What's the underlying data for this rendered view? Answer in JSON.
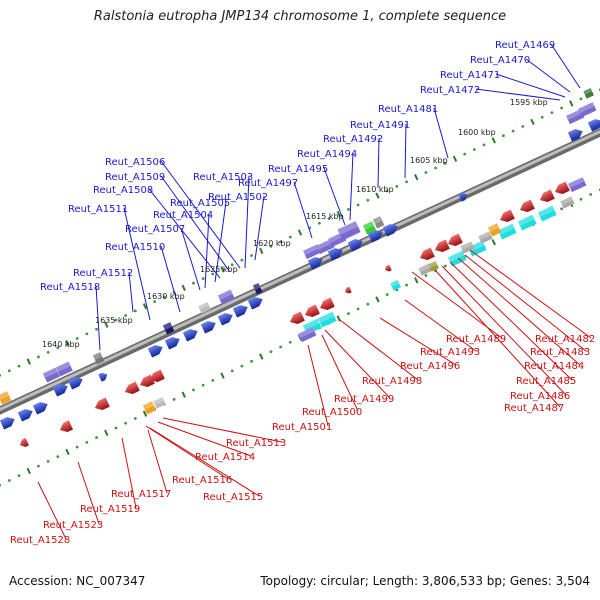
{
  "title": "Ralstonia eutropha JMP134 chromosome 1, complete sequence",
  "footer": {
    "accession": "Accession: NC_007347",
    "summary": "Topology: circular; Length: 3,806,533 bp; Genes: 3,504"
  },
  "scale_labels": [
    "1595 kbp",
    "1600 kbp",
    "1605 kbp",
    "1610 kbp",
    "1615 kbp",
    "1620 kbp",
    "1625 kbp",
    "1630 kbp",
    "1635 kbp",
    "1640 kbp"
  ],
  "forward_genes": [
    "Reut_A1469",
    "Reut_A1470",
    "Reut_A1471",
    "Reut_A1472",
    "Reut_A1481",
    "Reut_A1491",
    "Reut_A1492",
    "Reut_A1494",
    "Reut_A1495",
    "Reut_A1497",
    "Reut_A1502",
    "Reut_A1503",
    "Reut_A1506",
    "Reut_A1509",
    "Reut_A1508",
    "Reut_A1505",
    "Reut_A1511",
    "Reut_A1504",
    "Reut_A1507",
    "Reut_A1510",
    "Reut_A1512",
    "Reut_A1518"
  ],
  "reverse_genes": [
    "Reut_A1482",
    "Reut_A1483",
    "Reut_A1484",
    "Reut_A1485",
    "Reut_A1486",
    "Reut_A1487",
    "Reut_A1489",
    "Reut_A1493",
    "Reut_A1496",
    "Reut_A1498",
    "Reut_A1499",
    "Reut_A1500",
    "Reut_A1501",
    "Reut_A1513",
    "Reut_A1514",
    "Reut_A1516",
    "Reut_A1515",
    "Reut_A1517",
    "Reut_A1519",
    "Reut_A1523",
    "Reut_A1528"
  ],
  "colors": {
    "forward_label": "#1a1acc",
    "reverse_label": "#cc1111",
    "forward_gene": "#1a3be8",
    "reverse_gene": "#e81a1a",
    "backbone": "#8a8a8a",
    "tick_dot": "#3a9a3a",
    "tick_major": "#2a7a2a",
    "rna_gray": "#9a9a9a",
    "rna_cyan": "#22dde0",
    "rna_purple": "#7a6ad0",
    "rna_orange": "#f0a020",
    "rna_green": "#33cc33",
    "dark_navy": "#1a1a6a"
  }
}
